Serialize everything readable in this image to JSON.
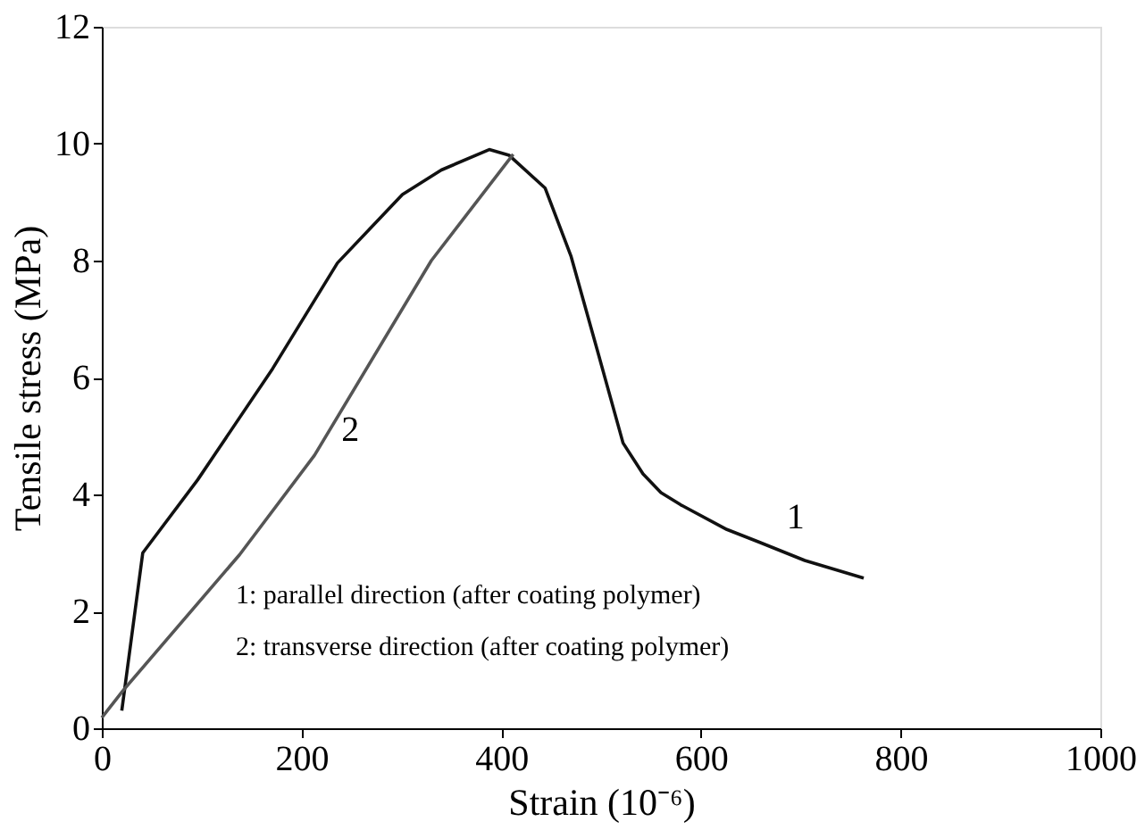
{
  "chart_data": {
    "type": "line",
    "xlabel": "Strain (10⁻⁶)",
    "ylabel": "Tensile stress (MPa)",
    "xlim": [
      0,
      1000
    ],
    "xticks": [
      0,
      200,
      400,
      600,
      800,
      1000
    ],
    "ylim": [
      0,
      12
    ],
    "yticks": [
      0,
      2,
      4,
      6,
      8,
      10,
      12
    ],
    "grid": false,
    "marker": "none",
    "line_style": "solid",
    "series": [
      {
        "color": "#111111",
        "x": [
          20,
          41,
          96,
          171,
          236,
          301,
          340,
          388,
          408,
          444,
          470,
          496,
          522,
          542,
          560,
          580,
          626,
          659,
          704,
          763
        ],
        "values": [
          0.3,
          3.0,
          4.25,
          6.15,
          7.96,
          9.13,
          9.55,
          9.9,
          9.8,
          9.24,
          8.07,
          6.48,
          4.88,
          4.35,
          4.03,
          3.82,
          3.4,
          3.18,
          2.87,
          2.57
        ]
      },
      {
        "color": "#555555",
        "x": [
          0,
          21,
          138,
          213,
          330,
          412
        ],
        "values": [
          0.18,
          0.64,
          2.97,
          4.67,
          8.0,
          9.82
        ]
      }
    ],
    "annotations": [
      {
        "text": "1",
        "x": 659,
        "y": 3.18
      },
      {
        "text": "2",
        "x": 213,
        "y": 4.67
      },
      "1: parallel direction (after coating polymer)",
      "2: transverse direction (after coating polymer)"
    ]
  }
}
